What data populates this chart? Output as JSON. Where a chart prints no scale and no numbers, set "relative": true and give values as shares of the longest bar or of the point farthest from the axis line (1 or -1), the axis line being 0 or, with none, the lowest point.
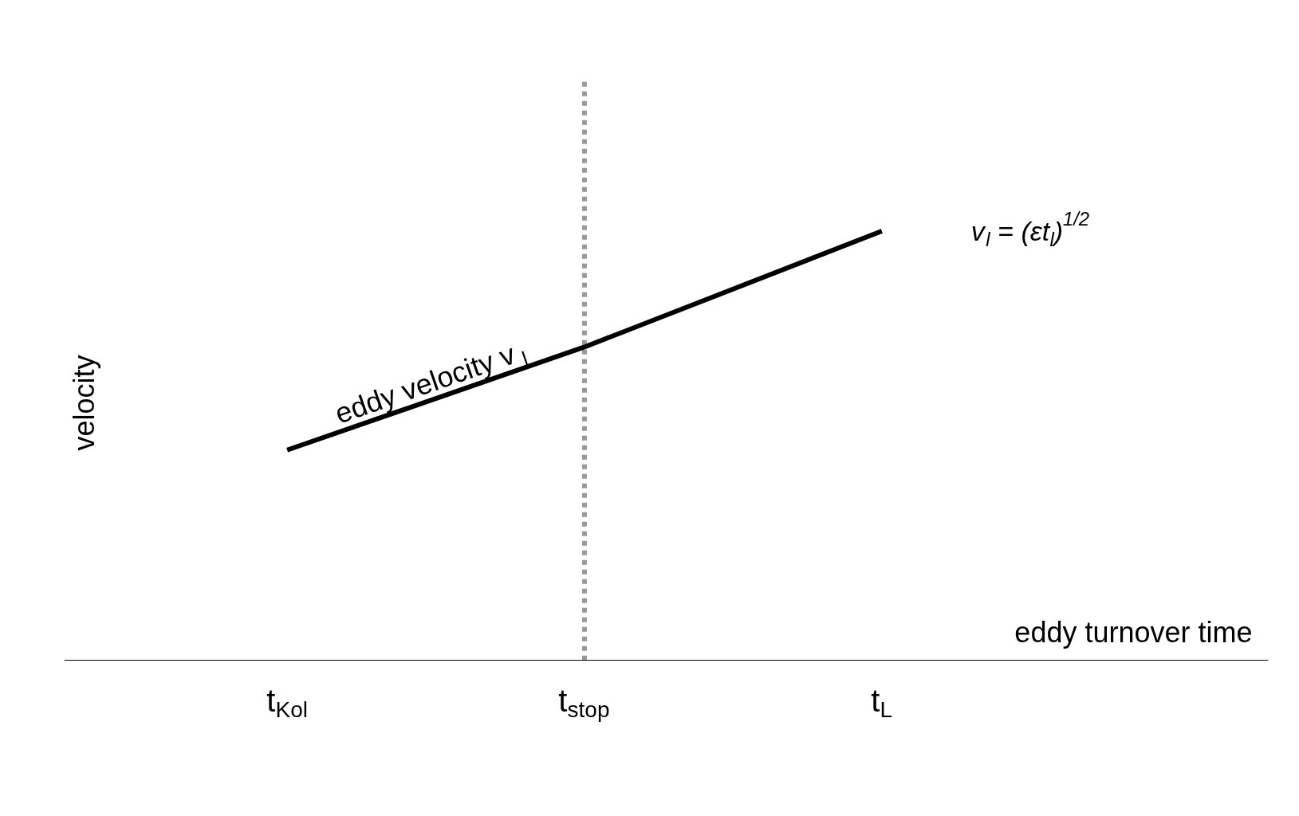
{
  "chart_data": {
    "type": "line",
    "relative": true,
    "categories": [
      "t$_{Kol}$",
      "t$_{stop}$",
      "t$_{L}$"
    ],
    "series": [
      {
        "color": "#000000",
        "values": [
          0.49,
          0.73,
          1
        ]
      }
    ],
    "xlabel": "eddy turnover time",
    "ylabel": "velocity",
    "annotations": [
      "eddy velocity v$_{l}$",
      "v$_{l}$ = (εt$_{l}$)$^{1/2}$"
    ],
    "ref_lines": [
      {
        "axis": "x",
        "value": "t$_{stop}$",
        "color": "#999999",
        "line_style": "dashed"
      }
    ],
    "grid": false,
    "legend": false,
    "marker": "none",
    "line_style": "solid"
  }
}
